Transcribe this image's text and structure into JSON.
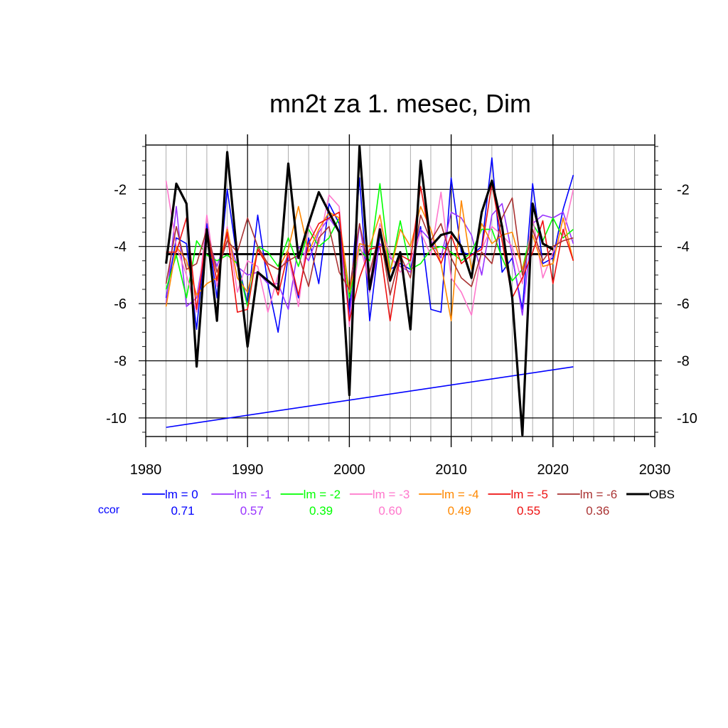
{
  "chart_data": {
    "type": "line",
    "title": "mn2t za 1. mesec, Dim",
    "xlabel": "",
    "ylabel": "",
    "xlim": [
      1980,
      2030
    ],
    "ylim": [
      -10.65,
      -0.45
    ],
    "x_ticks": [
      1980,
      1990,
      2000,
      2010,
      2020,
      2030
    ],
    "x_tick_labels": [
      "1980",
      "1990",
      "2000",
      "2010",
      "2020",
      "2030"
    ],
    "y_ticks": [
      -10,
      -8,
      -6,
      -4,
      -2
    ],
    "y_tick_labels": [
      "-10",
      "-8",
      "-6",
      "-4",
      "-2"
    ],
    "grid": true,
    "legend_position": "bottom",
    "ccor_label": "ccor",
    "x": [
      1982,
      1983,
      1984,
      1985,
      1986,
      1987,
      1988,
      1989,
      1990,
      1991,
      1992,
      1993,
      1994,
      1995,
      1996,
      1997,
      1998,
      1999,
      2000,
      2001,
      2002,
      2003,
      2004,
      2005,
      2006,
      2007,
      2008,
      2009,
      2010,
      2011,
      2012,
      2013,
      2014,
      2015,
      2016,
      2017,
      2018,
      2019,
      2020,
      2021,
      2022
    ],
    "series": [
      {
        "name": "lm = 0",
        "ccor": "0.71",
        "color": "#0000ff",
        "width": 1.6,
        "values": [
          -5.8,
          -3.7,
          -3.9,
          -6.9,
          -3.2,
          -5.8,
          -2.0,
          -4.5,
          -6.0,
          -2.9,
          -5.3,
          -7.0,
          -4.3,
          -5.8,
          -3.7,
          -5.3,
          -2.5,
          -3.2,
          -6.3,
          -1.6,
          -6.6,
          -3.6,
          -4.8,
          -4.6,
          -4.8,
          -3.3,
          -6.2,
          -6.3,
          -1.6,
          -4.2,
          -4.3,
          -4.0,
          -0.9,
          -4.9,
          -4.4,
          -6.2,
          -1.8,
          -4.6,
          -4.4,
          -2.7,
          -1.5
        ]
      },
      {
        "name": "lm = -1",
        "ccor": "0.57",
        "color": "#9933ff",
        "width": 1.6,
        "values": [
          -6.0,
          -2.6,
          -6.1,
          -5.8,
          -3.6,
          -4.7,
          -3.6,
          -4.7,
          -5.0,
          -4.9,
          -5.3,
          -5.3,
          -6.2,
          -4.0,
          -4.5,
          -3.5,
          -3.0,
          -3.5,
          -6.5,
          -3.2,
          -5.6,
          -3.9,
          -4.4,
          -4.7,
          -4.9,
          -3.4,
          -3.8,
          -4.4,
          -2.8,
          -3.0,
          -3.6,
          -5.0,
          -2.9,
          -2.5,
          -4.3,
          -6.4,
          -3.2,
          -2.9,
          -3.0,
          -2.8,
          -3.9
        ]
      },
      {
        "name": "lm = -2",
        "ccor": "0.39",
        "color": "#00ff00",
        "width": 1.6,
        "values": [
          -5.5,
          -4.3,
          -5.8,
          -3.8,
          -4.3,
          -4.5,
          -4.3,
          -4.6,
          -6.1,
          -4.0,
          -4.2,
          -4.7,
          -3.7,
          -4.7,
          -3.4,
          -4.0,
          -3.7,
          -3.0,
          -5.8,
          -4.1,
          -4.5,
          -1.8,
          -4.9,
          -3.1,
          -4.8,
          -4.6,
          -4.1,
          -4.0,
          -4.2,
          -4.5,
          -4.2,
          -3.4,
          -3.4,
          -4.4,
          -5.2,
          -4.8,
          -3.2,
          -3.8,
          -3.0,
          -3.7,
          -3.4
        ]
      },
      {
        "name": "lm = -3",
        "ccor": "0.60",
        "color": "#ff77cc",
        "width": 1.6,
        "values": [
          -1.7,
          -4.0,
          -5.0,
          -6.3,
          -2.9,
          -5.4,
          -3.3,
          -5.6,
          -4.5,
          -4.7,
          -6.3,
          -5.0,
          -4.3,
          -6.1,
          -3.2,
          -3.9,
          -2.2,
          -2.6,
          -6.8,
          -3.9,
          -5.3,
          -3.2,
          -4.3,
          -4.9,
          -4.5,
          -3.5,
          -4.3,
          -2.1,
          -5.1,
          -5.6,
          -6.4,
          -4.1,
          -3.3,
          -3.6,
          -4.0,
          -5.3,
          -3.0,
          -5.1,
          -4.2,
          -3.6,
          -2.0
        ]
      },
      {
        "name": "lm = -4",
        "ccor": "0.49",
        "color": "#ff8800",
        "width": 1.6,
        "values": [
          -6.1,
          -4.0,
          -4.5,
          -5.7,
          -5.3,
          -5.1,
          -3.4,
          -5.1,
          -5.6,
          -4.1,
          -4.6,
          -4.8,
          -4.1,
          -2.6,
          -4.2,
          -3.4,
          -2.8,
          -3.0,
          -5.6,
          -3.9,
          -4.0,
          -2.9,
          -4.9,
          -3.4,
          -4.0,
          -2.6,
          -3.4,
          -4.6,
          -6.6,
          -2.4,
          -4.8,
          -3.2,
          -3.9,
          -3.6,
          -3.5,
          -4.8,
          -3.6,
          -4.7,
          -4.6,
          -3.0,
          -4.5
        ]
      },
      {
        "name": "lm = -5",
        "ccor": "0.55",
        "color": "#ee1111",
        "width": 1.6,
        "values": [
          -4.2,
          -4.2,
          -3.0,
          -6.2,
          -3.5,
          -5.2,
          -3.5,
          -6.3,
          -6.2,
          -4.1,
          -4.7,
          -5.7,
          -4.2,
          -5.7,
          -3.9,
          -3.2,
          -3.0,
          -2.8,
          -6.6,
          -5.1,
          -4.1,
          -4.0,
          -6.6,
          -4.3,
          -4.5,
          -1.9,
          -3.9,
          -4.6,
          -3.6,
          -4.6,
          -4.3,
          -4.1,
          -1.8,
          -3.8,
          -5.8,
          -5.1,
          -4.2,
          -3.1,
          -5.3,
          -3.4,
          -4.5
        ]
      },
      {
        "name": "lm = -6",
        "ccor": "0.36",
        "color": "#aa3333",
        "width": 1.6,
        "values": [
          -5.3,
          -3.3,
          -4.8,
          -4.6,
          -3.4,
          -4.9,
          -3.8,
          -4.2,
          -3.0,
          -4.0,
          -4.6,
          -4.8,
          -4.5,
          -4.3,
          -5.4,
          -3.7,
          -3.3,
          -4.9,
          -5.5,
          -3.2,
          -4.9,
          -3.5,
          -5.7,
          -4.3,
          -5.1,
          -2.9,
          -3.8,
          -3.2,
          -4.4,
          -5.1,
          -5.4,
          -4.2,
          -4.6,
          -3.0,
          -2.3,
          -5.0,
          -3.4,
          -4.5,
          -4.0,
          -3.8,
          -3.7
        ]
      },
      {
        "name": "OBS",
        "ccor": "",
        "color": "#000000",
        "width": 3.2,
        "values": [
          -4.6,
          -1.8,
          -2.5,
          -8.2,
          -3.4,
          -6.6,
          -0.7,
          -4.4,
          -7.5,
          -4.9,
          -5.2,
          -5.5,
          -1.1,
          -4.4,
          -3.2,
          -2.1,
          -2.8,
          -3.5,
          -9.2,
          -0.5,
          -5.5,
          -3.4,
          -5.2,
          -4.2,
          -6.9,
          -1.0,
          -4.0,
          -3.6,
          -3.5,
          -4.0,
          -5.1,
          -2.8,
          -1.7,
          -3.3,
          -5.8,
          -10.6,
          -2.5,
          -3.9,
          -4.1,
          null,
          null
        ]
      }
    ],
    "reference_lines": [
      {
        "color": "#000000",
        "width": 3.0,
        "x": [
          1982,
          2020
        ],
        "y": [
          -4.27,
          -4.27
        ]
      },
      {
        "color": "#0000ff",
        "width": 1.6,
        "x": [
          1982,
          2022
        ],
        "y": [
          -10.33,
          -8.21
        ]
      }
    ]
  }
}
